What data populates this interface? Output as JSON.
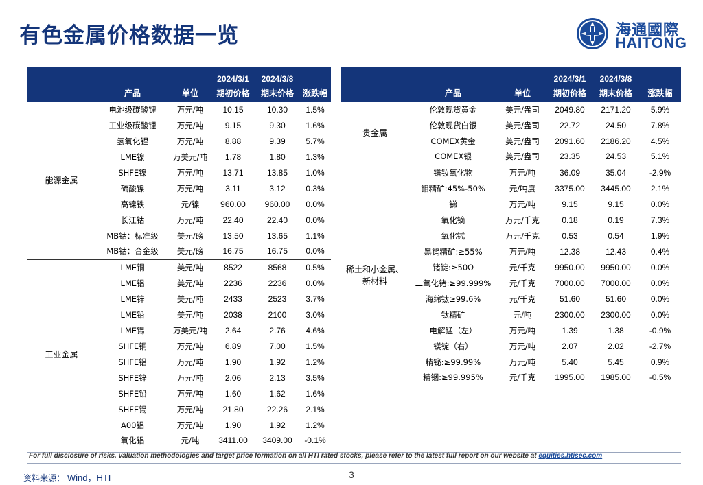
{
  "page": {
    "title": "有色金属价格数据一览",
    "page_number": "3"
  },
  "logo": {
    "name_cn": "海通國際",
    "name_en": "HAITONG",
    "icon": "haitong-logo-icon",
    "color": "#1a4a9a"
  },
  "colors": {
    "header_bg": "#14357a",
    "title": "#14357a"
  },
  "left_table": {
    "date_headers": [
      "2024/3/1",
      "2024/3/8"
    ],
    "columns": [
      "产品",
      "单位",
      "期初价格",
      "期末价格",
      "涨跌幅"
    ],
    "groups": [
      {
        "name": "能源金属",
        "rows": [
          [
            "电池级碳酸锂",
            "万元/吨",
            "10.15",
            "10.30",
            "1.5%"
          ],
          [
            "工业级碳酸锂",
            "万元/吨",
            "9.15",
            "9.30",
            "1.6%"
          ],
          [
            "氢氧化锂",
            "万元/吨",
            "8.88",
            "9.39",
            "5.7%"
          ],
          [
            "LME镍",
            "万美元/吨",
            "1.78",
            "1.80",
            "1.3%"
          ],
          [
            "SHFE镍",
            "万元/吨",
            "13.71",
            "13.85",
            "1.0%"
          ],
          [
            "硫酸镍",
            "万元/吨",
            "3.11",
            "3.12",
            "0.3%"
          ],
          [
            "高镍铁",
            "元/镍",
            "960.00",
            "960.00",
            "0.0%"
          ],
          [
            "长江钴",
            "万元/吨",
            "22.40",
            "22.40",
            "0.0%"
          ],
          [
            "MB钴：标准级",
            "美元/磅",
            "13.50",
            "13.65",
            "1.1%"
          ],
          [
            "MB钴：合金级",
            "美元/磅",
            "16.75",
            "16.75",
            "0.0%"
          ]
        ]
      },
      {
        "name": "工业金属",
        "rows": [
          [
            "LME铜",
            "美元/吨",
            "8522",
            "8568",
            "0.5%"
          ],
          [
            "LME铝",
            "美元/吨",
            "2236",
            "2236",
            "0.0%"
          ],
          [
            "LME锌",
            "美元/吨",
            "2433",
            "2523",
            "3.7%"
          ],
          [
            "LME铅",
            "美元/吨",
            "2038",
            "2100",
            "3.0%"
          ],
          [
            "LME锡",
            "万美元/吨",
            "2.64",
            "2.76",
            "4.6%"
          ],
          [
            "SHFE铜",
            "万元/吨",
            "6.89",
            "7.00",
            "1.5%"
          ],
          [
            "SHFE铝",
            "万元/吨",
            "1.90",
            "1.92",
            "1.2%"
          ],
          [
            "SHFE锌",
            "万元/吨",
            "2.06",
            "2.13",
            "3.5%"
          ],
          [
            "SHFE铅",
            "万元/吨",
            "1.60",
            "1.62",
            "1.6%"
          ],
          [
            "SHFE锡",
            "万元/吨",
            "21.80",
            "22.26",
            "2.1%"
          ],
          [
            "A00铝",
            "万元/吨",
            "1.90",
            "1.92",
            "1.2%"
          ],
          [
            "氧化铝",
            "元/吨",
            "3411.00",
            "3409.00",
            "-0.1%"
          ]
        ]
      }
    ]
  },
  "right_table": {
    "date_headers": [
      "2024/3/1",
      "2024/3/8"
    ],
    "columns": [
      "产品",
      "单位",
      "期初价格",
      "期末价格",
      "涨跌幅"
    ],
    "groups": [
      {
        "name": "贵金属",
        "rows": [
          [
            "伦敦现货黄金",
            "美元/盎司",
            "2049.80",
            "2171.20",
            "5.9%"
          ],
          [
            "伦敦现货白银",
            "美元/盎司",
            "22.72",
            "24.50",
            "7.8%"
          ],
          [
            "COMEX黄金",
            "美元/盎司",
            "2091.60",
            "2186.20",
            "4.5%"
          ],
          [
            "COMEX银",
            "美元/盎司",
            "23.35",
            "24.53",
            "5.1%"
          ]
        ]
      },
      {
        "name": "稀土和小金属、新材料",
        "rows": [
          [
            "镨钕氧化物",
            "万元/吨",
            "36.09",
            "35.04",
            "-2.9%"
          ],
          [
            "钼精矿:45%-50%",
            "元/吨度",
            "3375.00",
            "3445.00",
            "2.1%"
          ],
          [
            "锑",
            "万元/吨",
            "9.15",
            "9.15",
            "0.0%"
          ],
          [
            "氧化镝",
            "万元/千克",
            "0.18",
            "0.19",
            "7.3%"
          ],
          [
            "氧化铽",
            "万元/千克",
            "0.53",
            "0.54",
            "1.9%"
          ],
          [
            "黑钨精矿:≥55%",
            "万元/吨",
            "12.38",
            "12.43",
            "0.4%"
          ],
          [
            "锗锭:≥50Ω",
            "元/千克",
            "9950.00",
            "9950.00",
            "0.0%"
          ],
          [
            "二氧化锗:≥99.999%",
            "元/千克",
            "7000.00",
            "7000.00",
            "0.0%"
          ],
          [
            "海绵钛≥99.6%",
            "元/千克",
            "51.60",
            "51.60",
            "0.0%"
          ],
          [
            "钛精矿",
            "元/吨",
            "2300.00",
            "2300.00",
            "0.0%"
          ],
          [
            "电解锰（左）",
            "万元/吨",
            "1.39",
            "1.38",
            "-0.9%"
          ],
          [
            "镁锭（右）",
            "万元/吨",
            "2.07",
            "2.02",
            "-2.7%"
          ],
          [
            "精铋:≥99.99%",
            "万元/吨",
            "5.40",
            "5.45",
            "0.9%"
          ],
          [
            "精铟:≥99.995%",
            "元/千克",
            "1995.00",
            "1985.00",
            "-0.5%"
          ]
        ]
      }
    ]
  },
  "footer": {
    "disclaimer": "For full disclosure of risks, valuation methodologies and target price formation on all HTI rated stocks, please refer to the latest full report on our website at ",
    "link": "equities.htisec.com",
    "source_label": "资料来源：",
    "source_value": "Wind，HTI"
  }
}
